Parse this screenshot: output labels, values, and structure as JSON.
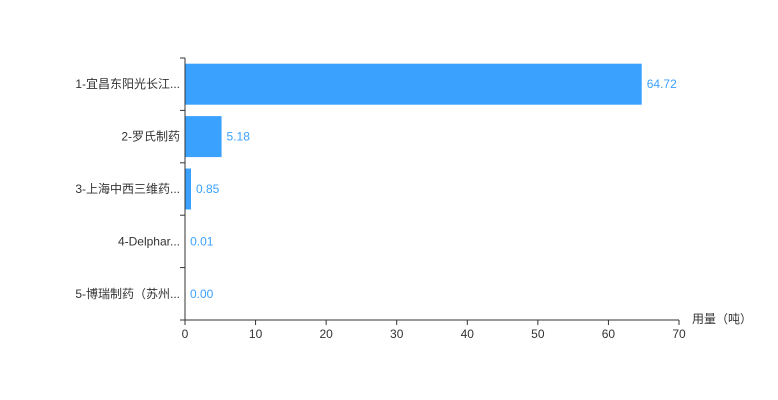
{
  "chart_data": {
    "type": "bar",
    "orientation": "horizontal",
    "categories": [
      "1-宜昌东阳光长江...",
      "2-罗氏制药",
      "3-上海中西三维药...",
      "4-Delphar...",
      "5-博瑞制药（苏州..."
    ],
    "values": [
      64.72,
      5.18,
      0.85,
      0.01,
      0.0
    ],
    "value_labels": [
      "64.72",
      "5.18",
      "0.85",
      "0.01",
      "0.00"
    ],
    "xlabel": "用量（吨）",
    "ylabel": "",
    "xlim": [
      0,
      70
    ],
    "x_ticks": [
      "0",
      "10",
      "20",
      "30",
      "40",
      "50",
      "60",
      "70"
    ],
    "grid": false,
    "legend": "none",
    "bar_color": "#3ba1ff",
    "label_color": "#3ba1ff"
  }
}
